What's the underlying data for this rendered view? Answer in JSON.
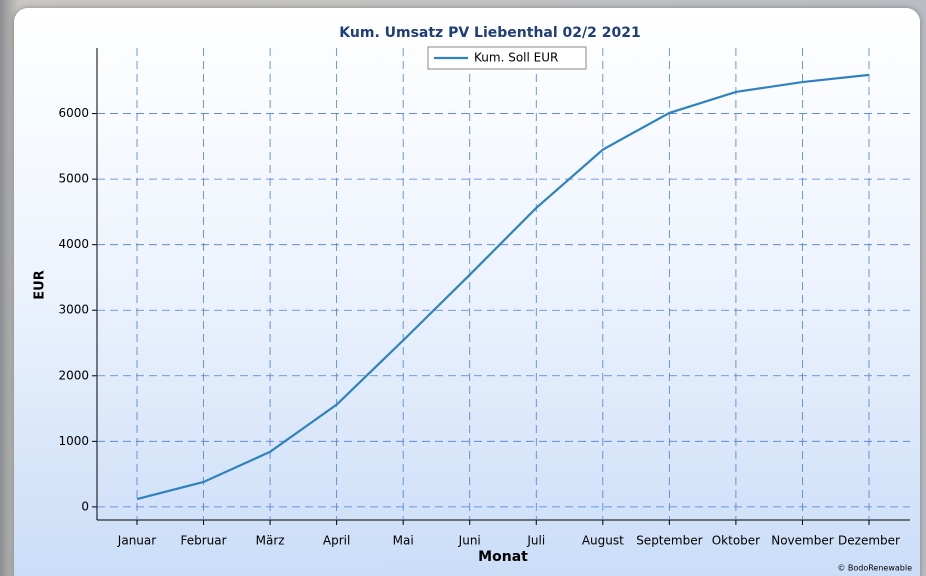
{
  "chart_data": {
    "type": "line",
    "title": "Kum. Umsatz PV Liebenthal 02/2 2021",
    "x_label": "Monat",
    "y_label": "EUR",
    "categories": [
      "Januar",
      "Februar",
      "März",
      "April",
      "Mai",
      "Juni",
      "Juli",
      "August",
      "September",
      "Oktober",
      "November",
      "Dezember"
    ],
    "series": [
      {
        "name": "Kum. Soll EUR",
        "color": "#2f82c0",
        "values": [
          120,
          380,
          840,
          1560,
          2540,
          3540,
          4560,
          5450,
          6010,
          6330,
          6480,
          6590
        ]
      }
    ],
    "ylim": [
      -200,
      7000
    ],
    "yticks": [
      0,
      1000,
      2000,
      3000,
      4000,
      5000,
      6000
    ],
    "grid": true,
    "legend": "top",
    "credit": "© BodoRenewable"
  }
}
